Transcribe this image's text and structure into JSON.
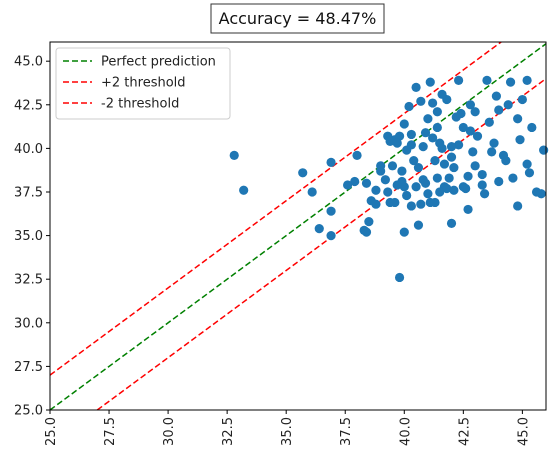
{
  "chart_data": {
    "type": "scatter",
    "title": "Accuracy = 48.47%",
    "xlabel": "",
    "ylabel": "",
    "xlim": [
      25.0,
      46.0
    ],
    "ylim": [
      25.0,
      46.1
    ],
    "xticks": [
      "25.0",
      "27.5",
      "30.0",
      "32.5",
      "35.0",
      "37.5",
      "40.0",
      "42.5",
      "45.0"
    ],
    "yticks": [
      "25.0",
      "27.5",
      "30.0",
      "32.5",
      "35.0",
      "37.5",
      "40.0",
      "42.5",
      "45.0"
    ],
    "grid": false,
    "legend_position": "top-left",
    "series": [
      {
        "kind": "points",
        "color": "#1f77b4",
        "points": [
          [
            32.8,
            39.6
          ],
          [
            33.2,
            37.6
          ],
          [
            35.7,
            38.6
          ],
          [
            36.1,
            37.5
          ],
          [
            36.4,
            35.4
          ],
          [
            36.9,
            39.2
          ],
          [
            36.9,
            36.4
          ],
          [
            36.9,
            35.0
          ],
          [
            37.9,
            38.1
          ],
          [
            38.0,
            39.6
          ],
          [
            38.3,
            35.3
          ],
          [
            38.6,
            37.0
          ],
          [
            38.5,
            35.8
          ],
          [
            38.8,
            37.6
          ],
          [
            38.8,
            36.8
          ],
          [
            39.0,
            39.0
          ],
          [
            39.0,
            38.7
          ],
          [
            39.3,
            40.7
          ],
          [
            39.3,
            37.5
          ],
          [
            39.4,
            36.9
          ],
          [
            39.5,
            39.0
          ],
          [
            39.6,
            40.5
          ],
          [
            39.7,
            37.9
          ],
          [
            39.8,
            40.7
          ],
          [
            39.9,
            38.7
          ],
          [
            40.0,
            37.8
          ],
          [
            40.1,
            37.3
          ],
          [
            40.3,
            40.2
          ],
          [
            40.3,
            40.8
          ],
          [
            40.4,
            39.3
          ],
          [
            40.5,
            37.8
          ],
          [
            40.6,
            38.9
          ],
          [
            40.7,
            36.8
          ],
          [
            40.8,
            38.2
          ],
          [
            40.9,
            40.9
          ],
          [
            41.0,
            37.4
          ],
          [
            41.2,
            42.6
          ],
          [
            41.3,
            39.3
          ],
          [
            41.4,
            38.3
          ],
          [
            41.5,
            40.3
          ],
          [
            41.7,
            37.8
          ],
          [
            41.8,
            42.8
          ],
          [
            41.8,
            37.7
          ],
          [
            42.0,
            39.5
          ],
          [
            42.1,
            38.9
          ],
          [
            42.3,
            40.2
          ],
          [
            42.5,
            41.2
          ],
          [
            42.6,
            37.7
          ],
          [
            42.7,
            36.5
          ],
          [
            42.8,
            41.0
          ],
          [
            43.0,
            39.0
          ],
          [
            43.1,
            40.7
          ],
          [
            43.3,
            38.5
          ],
          [
            43.4,
            37.4
          ],
          [
            43.6,
            41.5
          ],
          [
            43.8,
            40.3
          ],
          [
            44.0,
            38.1
          ],
          [
            44.2,
            39.6
          ],
          [
            44.4,
            42.5
          ],
          [
            44.6,
            38.3
          ],
          [
            44.9,
            40.5
          ],
          [
            45.2,
            43.9
          ],
          [
            45.3,
            38.6
          ],
          [
            45.6,
            37.5
          ],
          [
            45.9,
            39.9
          ],
          [
            45.2,
            39.1
          ],
          [
            44.5,
            43.8
          ],
          [
            43.9,
            43.0
          ],
          [
            42.3,
            43.9
          ],
          [
            41.6,
            43.1
          ],
          [
            40.5,
            43.5
          ],
          [
            40.2,
            42.4
          ],
          [
            39.4,
            40.4
          ],
          [
            40.0,
            41.4
          ],
          [
            41.0,
            41.7
          ],
          [
            41.4,
            41.2
          ],
          [
            41.6,
            40.0
          ],
          [
            42.0,
            40.1
          ],
          [
            42.4,
            42.0
          ],
          [
            42.8,
            42.5
          ],
          [
            43.5,
            43.9
          ],
          [
            44.0,
            42.2
          ],
          [
            44.8,
            41.7
          ],
          [
            45.0,
            42.8
          ],
          [
            45.4,
            41.2
          ],
          [
            40.0,
            35.2
          ],
          [
            40.6,
            35.6
          ],
          [
            42.0,
            35.7
          ],
          [
            39.8,
            32.6
          ],
          [
            44.8,
            36.7
          ],
          [
            45.8,
            37.4
          ],
          [
            41.9,
            38.3
          ],
          [
            41.1,
            36.9
          ],
          [
            40.3,
            36.7
          ],
          [
            39.6,
            36.9
          ],
          [
            38.4,
            35.2
          ],
          [
            41.2,
            40.6
          ],
          [
            40.8,
            40.1
          ],
          [
            41.7,
            39.1
          ],
          [
            42.9,
            39.8
          ],
          [
            43.7,
            39.8
          ],
          [
            44.3,
            39.3
          ],
          [
            40.1,
            39.9
          ],
          [
            39.7,
            40.3
          ],
          [
            41.4,
            42.1
          ],
          [
            42.2,
            41.8
          ],
          [
            43.0,
            42.1
          ],
          [
            41.1,
            43.8
          ],
          [
            40.7,
            42.7
          ],
          [
            42.5,
            37.8
          ],
          [
            41.5,
            37.5
          ],
          [
            40.9,
            38.0
          ],
          [
            42.1,
            37.6
          ],
          [
            41.3,
            36.9
          ],
          [
            39.9,
            38.1
          ],
          [
            39.2,
            38.2
          ],
          [
            38.4,
            38.0
          ],
          [
            37.6,
            37.9
          ],
          [
            43.3,
            37.9
          ],
          [
            42.7,
            38.4
          ]
        ]
      },
      {
        "name": "Perfect prediction",
        "kind": "line",
        "color": "#008000",
        "dash": "6,3",
        "offset": 0
      },
      {
        "name": "+2 threshold",
        "kind": "line",
        "color": "#ff0000",
        "dash": "6,3",
        "offset": 2
      },
      {
        "name": "-2 threshold",
        "kind": "line",
        "color": "#ff0000",
        "dash": "6,3",
        "offset": -2
      }
    ]
  }
}
